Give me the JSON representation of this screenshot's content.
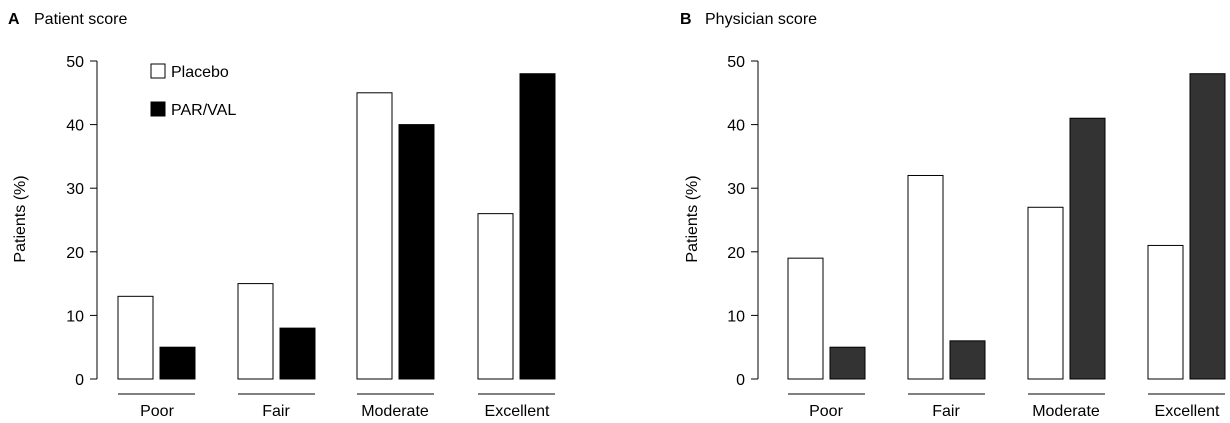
{
  "chart_data": [
    {
      "type": "bar",
      "panel": "A",
      "title": "Patient score",
      "ylabel": "Patients (%)",
      "xlabel": "",
      "ylim": [
        0,
        50
      ],
      "yticks": [
        0,
        10,
        20,
        30,
        40,
        50
      ],
      "categories": [
        "Poor",
        "Fair",
        "Moderate",
        "Excellent"
      ],
      "series": [
        {
          "name": "Placebo",
          "values": [
            13,
            15,
            45,
            26
          ],
          "fill": "#ffffff",
          "stroke": "#000000"
        },
        {
          "name": "PAR/VAL",
          "values": [
            5,
            8,
            40,
            48
          ],
          "fill": "#000000",
          "stroke": "#000000"
        }
      ],
      "legend": {
        "placement": "top-left"
      }
    },
    {
      "type": "bar",
      "panel": "B",
      "title": "Physician score",
      "ylabel": "Patients (%)",
      "xlabel": "",
      "ylim": [
        0,
        50
      ],
      "yticks": [
        0,
        10,
        20,
        30,
        40,
        50
      ],
      "categories": [
        "Poor",
        "Fair",
        "Moderate",
        "Excellent"
      ],
      "series": [
        {
          "values": [
            19,
            32,
            27,
            21
          ],
          "fill": "#ffffff",
          "stroke": "#000000"
        },
        {
          "values": [
            5,
            6,
            41,
            48
          ],
          "fill": "#333333",
          "stroke": "#000000"
        }
      ]
    }
  ]
}
